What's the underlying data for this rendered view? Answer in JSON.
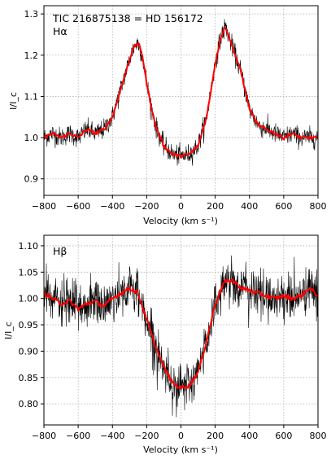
{
  "chart_data": [
    {
      "type": "line",
      "title": "TIC 216875138 = HD 156172",
      "annotation": "Hα",
      "xlabel": "Velocity (km s⁻¹)",
      "ylabel": "I/I_c",
      "xlim": [
        -800,
        800
      ],
      "ylim": [
        0.86,
        1.32
      ],
      "xticks": [
        -800,
        -600,
        -400,
        -200,
        0,
        200,
        400,
        600,
        800
      ],
      "xtick_labels": [
        "−800",
        "−600",
        "−400",
        "−200",
        "0",
        "200",
        "400",
        "600",
        "800"
      ],
      "yticks": [
        0.9,
        1.0,
        1.1,
        1.2,
        1.3
      ],
      "ytick_labels": [
        "0.9",
        "1.0",
        "1.1",
        "1.2",
        "1.3"
      ],
      "grid": true,
      "series": [
        {
          "role": "observed",
          "color": "#000000",
          "noise": 0.012,
          "x": [
            -800,
            -750,
            -700,
            -650,
            -600,
            -550,
            -500,
            -450,
            -400,
            -350,
            -300,
            -275,
            -250,
            -225,
            -200,
            -150,
            -100,
            -50,
            0,
            50,
            100,
            150,
            200,
            230,
            260,
            300,
            350,
            400,
            450,
            500,
            550,
            600,
            650,
            700,
            750,
            800
          ],
          "y": [
            1.0,
            1.01,
            1.0,
            1.01,
            1.0,
            1.02,
            1.01,
            1.02,
            1.05,
            1.12,
            1.19,
            1.22,
            1.23,
            1.2,
            1.13,
            1.03,
            0.98,
            0.96,
            0.955,
            0.96,
            0.98,
            1.05,
            1.18,
            1.24,
            1.27,
            1.22,
            1.16,
            1.07,
            1.03,
            1.02,
            1.01,
            1.0,
            1.01,
            1.0,
            1.0,
            1.0
          ]
        },
        {
          "role": "smoothed",
          "color": "#ff0000",
          "x": [
            -800,
            -750,
            -700,
            -650,
            -600,
            -550,
            -500,
            -450,
            -400,
            -350,
            -300,
            -275,
            -250,
            -225,
            -200,
            -150,
            -100,
            -50,
            0,
            50,
            100,
            150,
            200,
            230,
            260,
            300,
            350,
            400,
            450,
            500,
            550,
            600,
            650,
            700,
            750,
            800
          ],
          "y": [
            1.0,
            1.01,
            1.0,
            1.01,
            1.0,
            1.02,
            1.01,
            1.02,
            1.05,
            1.12,
            1.19,
            1.22,
            1.23,
            1.2,
            1.13,
            1.03,
            0.98,
            0.96,
            0.955,
            0.96,
            0.98,
            1.05,
            1.18,
            1.24,
            1.27,
            1.22,
            1.16,
            1.07,
            1.03,
            1.02,
            1.01,
            1.0,
            1.01,
            1.0,
            1.0,
            1.0
          ]
        }
      ]
    },
    {
      "type": "line",
      "title": "",
      "annotation": "Hβ",
      "xlabel": "Velocity (km s⁻¹)",
      "ylabel": "I/I_c",
      "xlim": [
        -800,
        800
      ],
      "ylim": [
        0.76,
        1.12
      ],
      "xticks": [
        -800,
        -600,
        -400,
        -200,
        0,
        200,
        400,
        600,
        800
      ],
      "xtick_labels": [
        "−800",
        "−600",
        "−400",
        "−200",
        "0",
        "200",
        "400",
        "600",
        "800"
      ],
      "yticks": [
        0.8,
        0.85,
        0.9,
        0.95,
        1.0,
        1.05,
        1.1
      ],
      "ytick_labels": [
        "0.80",
        "0.85",
        "0.90",
        "0.95",
        "1.00",
        "1.05",
        "1.10"
      ],
      "grid": true,
      "series": [
        {
          "role": "observed",
          "color": "#000000",
          "noise": 0.022,
          "x": [
            -800,
            -750,
            -700,
            -650,
            -600,
            -550,
            -500,
            -450,
            -400,
            -350,
            -300,
            -250,
            -200,
            -150,
            -100,
            -50,
            0,
            50,
            100,
            150,
            200,
            250,
            300,
            350,
            400,
            450,
            500,
            550,
            600,
            650,
            700,
            750,
            800
          ],
          "y": [
            1.01,
            1.0,
            0.99,
            0.995,
            0.98,
            0.99,
            0.995,
            0.985,
            1.0,
            1.01,
            1.02,
            1.01,
            0.96,
            0.91,
            0.87,
            0.84,
            0.83,
            0.835,
            0.86,
            0.92,
            0.99,
            1.03,
            1.035,
            1.02,
            1.015,
            1.01,
            1.005,
            1.0,
            1.005,
            1.0,
            1.005,
            1.02,
            1.005
          ]
        },
        {
          "role": "smoothed",
          "color": "#ff0000",
          "x": [
            -800,
            -750,
            -700,
            -650,
            -600,
            -550,
            -500,
            -450,
            -400,
            -350,
            -300,
            -250,
            -200,
            -150,
            -100,
            -50,
            0,
            50,
            100,
            150,
            200,
            250,
            300,
            350,
            400,
            450,
            500,
            550,
            600,
            650,
            700,
            750,
            800
          ],
          "y": [
            1.01,
            1.0,
            0.99,
            0.995,
            0.98,
            0.99,
            0.995,
            0.985,
            1.0,
            1.01,
            1.02,
            1.01,
            0.96,
            0.91,
            0.87,
            0.84,
            0.83,
            0.835,
            0.86,
            0.92,
            0.99,
            1.03,
            1.035,
            1.02,
            1.015,
            1.01,
            1.005,
            1.0,
            1.005,
            1.0,
            1.005,
            1.02,
            1.005
          ]
        }
      ]
    }
  ]
}
